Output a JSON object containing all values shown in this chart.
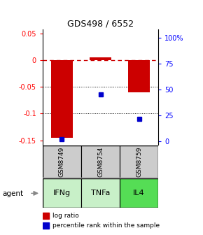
{
  "title": "GDS498 / 6552",
  "bar_positions": [
    1,
    2,
    3
  ],
  "log_ratios": [
    -0.145,
    0.005,
    -0.06
  ],
  "percentile_ranks": [
    2.0,
    45.0,
    22.0
  ],
  "sample_labels": [
    "GSM8749",
    "GSM8754",
    "GSM8759"
  ],
  "agent_labels": [
    "IFNg",
    "TNFa",
    "IL4"
  ],
  "agent_colors": [
    "#c8f0c8",
    "#c8f0c8",
    "#55dd55"
  ],
  "ylim_left": [
    -0.158,
    0.058
  ],
  "ylim_right": [
    -3.0,
    108.0
  ],
  "yticks_left": [
    0.05,
    0.0,
    -0.05,
    -0.1,
    -0.15
  ],
  "ytick_left_labels": [
    "0.05",
    "0",
    "-0.05",
    "-0.1",
    "-0.15"
  ],
  "yticks_right": [
    0,
    25,
    50,
    75,
    100
  ],
  "ytick_right_labels": [
    "0",
    "25",
    "50",
    "75",
    "100%"
  ],
  "bar_color": "#cc0000",
  "dot_color": "#0000cc",
  "grid_yticks": [
    -0.05,
    -0.1
  ],
  "bar_width": 0.55,
  "legend_log_ratio": "log ratio",
  "legend_percentile": "percentile rank within the sample",
  "bg_color": "#ffffff"
}
